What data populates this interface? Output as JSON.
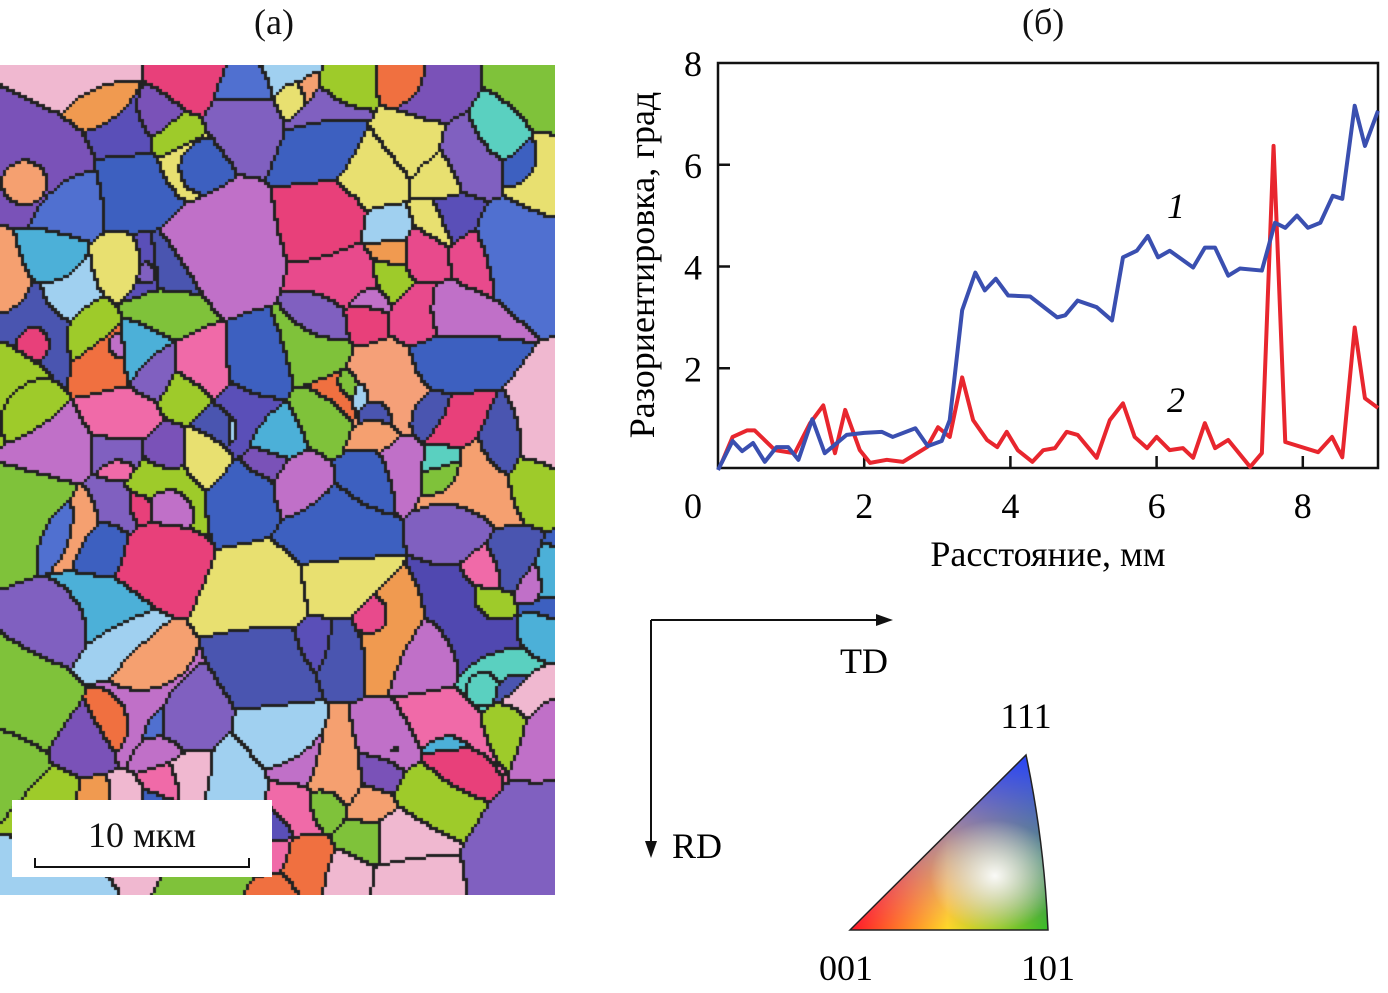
{
  "panels": {
    "a_label": "(a)",
    "b_label": "(б)"
  },
  "scale_bar": {
    "label": "10 мкм"
  },
  "directions": {
    "td": "TD",
    "rd": "RD"
  },
  "ipf_triangle": {
    "top": "111",
    "left": "001",
    "right": "101",
    "colors": {
      "001": "#ff0000",
      "101": "#00cc00",
      "111": "#3030ff"
    }
  },
  "chart_data": {
    "type": "line",
    "xlabel": "Расстояние, мм",
    "ylabel": "Разориентировка, град",
    "xlim": [
      0,
      9
    ],
    "ylim": [
      0,
      8
    ],
    "xticks": [
      "0",
      "2",
      "4",
      "6",
      "8"
    ],
    "yticks": [
      "2",
      "4",
      "6",
      "8"
    ],
    "grid": false,
    "series": [
      {
        "name": "1",
        "color": "#3a4fb0",
        "points": [
          [
            0,
            0
          ],
          [
            0.2,
            0.57
          ],
          [
            0.33,
            0.37
          ],
          [
            0.48,
            0.53
          ],
          [
            0.64,
            0.16
          ],
          [
            0.8,
            0.45
          ],
          [
            0.96,
            0.45
          ],
          [
            1.1,
            0.2
          ],
          [
            1.29,
            1.0
          ],
          [
            1.46,
            0.33
          ],
          [
            1.76,
            0.69
          ],
          [
            2.0,
            0.73
          ],
          [
            2.24,
            0.75
          ],
          [
            2.39,
            0.65
          ],
          [
            2.7,
            0.82
          ],
          [
            2.87,
            0.47
          ],
          [
            3.06,
            0.57
          ],
          [
            3.17,
            0.98
          ],
          [
            3.34,
            3.14
          ],
          [
            3.52,
            3.88
          ],
          [
            3.65,
            3.53
          ],
          [
            3.8,
            3.76
          ],
          [
            3.97,
            3.43
          ],
          [
            4.27,
            3.41
          ],
          [
            4.64,
            3.0
          ],
          [
            4.75,
            3.04
          ],
          [
            4.92,
            3.33
          ],
          [
            5.18,
            3.2
          ],
          [
            5.39,
            2.94
          ],
          [
            5.54,
            4.18
          ],
          [
            5.73,
            4.31
          ],
          [
            5.88,
            4.6
          ],
          [
            6.02,
            4.18
          ],
          [
            6.18,
            4.31
          ],
          [
            6.5,
            3.98
          ],
          [
            6.66,
            4.37
          ],
          [
            6.8,
            4.37
          ],
          [
            6.98,
            3.82
          ],
          [
            7.14,
            3.96
          ],
          [
            7.44,
            3.92
          ],
          [
            7.62,
            4.86
          ],
          [
            7.76,
            4.76
          ],
          [
            7.92,
            5.0
          ],
          [
            8.07,
            4.76
          ],
          [
            8.24,
            4.86
          ],
          [
            8.41,
            5.39
          ],
          [
            8.54,
            5.33
          ],
          [
            8.71,
            7.16
          ],
          [
            8.85,
            6.37
          ],
          [
            9.03,
            7.06
          ]
        ]
      },
      {
        "name": "2",
        "color": "#e8262e",
        "points": [
          [
            0.05,
            0.14
          ],
          [
            0.2,
            0.65
          ],
          [
            0.4,
            0.78
          ],
          [
            0.5,
            0.78
          ],
          [
            0.78,
            0.39
          ],
          [
            1.05,
            0.33
          ],
          [
            1.26,
            0.92
          ],
          [
            1.44,
            1.27
          ],
          [
            1.6,
            0.33
          ],
          [
            1.74,
            1.18
          ],
          [
            1.94,
            0.39
          ],
          [
            2.08,
            0.14
          ],
          [
            2.31,
            0.2
          ],
          [
            2.53,
            0.16
          ],
          [
            2.86,
            0.45
          ],
          [
            3.01,
            0.84
          ],
          [
            3.17,
            0.65
          ],
          [
            3.34,
            1.82
          ],
          [
            3.49,
            0.98
          ],
          [
            3.68,
            0.59
          ],
          [
            3.82,
            0.45
          ],
          [
            3.95,
            0.75
          ],
          [
            4.1,
            0.39
          ],
          [
            4.3,
            0.16
          ],
          [
            4.45,
            0.39
          ],
          [
            4.61,
            0.43
          ],
          [
            4.77,
            0.75
          ],
          [
            4.92,
            0.69
          ],
          [
            5.18,
            0.24
          ],
          [
            5.36,
            0.98
          ],
          [
            5.54,
            1.31
          ],
          [
            5.7,
            0.65
          ],
          [
            5.87,
            0.43
          ],
          [
            6.0,
            0.65
          ],
          [
            6.18,
            0.39
          ],
          [
            6.36,
            0.43
          ],
          [
            6.5,
            0.24
          ],
          [
            6.66,
            0.92
          ],
          [
            6.8,
            0.43
          ],
          [
            6.98,
            0.59
          ],
          [
            7.28,
            0.06
          ],
          [
            7.44,
            0.33
          ],
          [
            7.6,
            6.37
          ],
          [
            7.76,
            0.55
          ],
          [
            8.21,
            0.35
          ],
          [
            8.4,
            0.65
          ],
          [
            8.54,
            0.25
          ],
          [
            8.71,
            2.8
          ],
          [
            8.85,
            1.41
          ],
          [
            9.03,
            1.22
          ]
        ]
      }
    ]
  }
}
